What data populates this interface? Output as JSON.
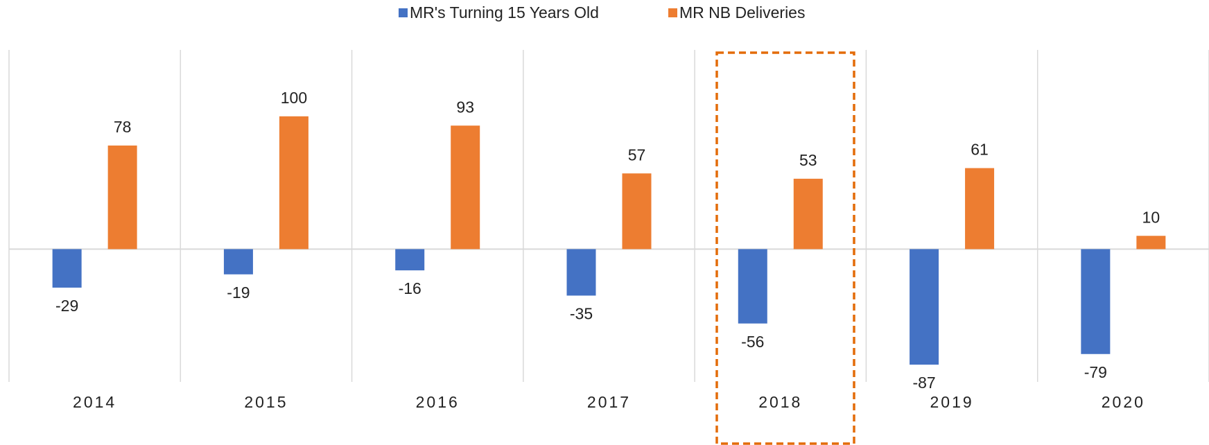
{
  "chart_data": {
    "type": "bar",
    "categories": [
      "2014",
      "2015",
      "2016",
      "2017",
      "2018",
      "2019",
      "2020"
    ],
    "series": [
      {
        "name": "MR's Turning 15 Years Old",
        "color": "#4472c4",
        "values": [
          -29,
          -19,
          -16,
          -35,
          -56,
          -87,
          -79
        ]
      },
      {
        "name": "MR NB Deliveries",
        "color": "#ed7d31",
        "values": [
          78,
          100,
          93,
          57,
          53,
          61,
          10
        ]
      }
    ],
    "ylim": [
      -100,
      150
    ],
    "grid": true,
    "legend": "top"
  }
}
